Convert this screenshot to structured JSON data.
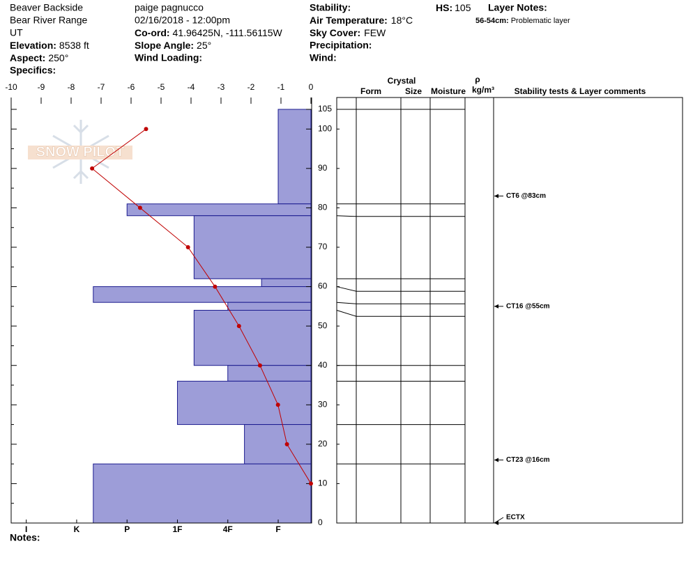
{
  "header": {
    "location": "Beaver Backside",
    "range": "Bear River Range",
    "state": "UT",
    "elevation": {
      "label": "Elevation:",
      "value": "8538 ft"
    },
    "aspect": {
      "label": "Aspect:",
      "value": "250°"
    },
    "specifics": "Specifics:",
    "observer": "paige pagnucco",
    "datetime": "02/16/2018 - 12:00pm",
    "coord": {
      "label": "Co-ord:",
      "value": "41.96425N, -111.56115W"
    },
    "slope": {
      "label": "Slope Angle:",
      "value": "25°"
    },
    "wind_loading": "Wind Loading:",
    "stability": "Stability:",
    "air_temp": {
      "label": "Air Temperature:",
      "value": "18°C"
    },
    "sky": {
      "label": "Sky Cover:",
      "value": "FEW"
    },
    "precip": "Precipitation:",
    "wind": "Wind:",
    "hs": {
      "label": "HS:",
      "value": "105"
    },
    "layer_notes": {
      "label": "Layer Notes:",
      "items": [
        {
          "range": "56-54cm:",
          "note": "Problematic layer"
        }
      ]
    }
  },
  "notes": "Notes:",
  "watermark": "SNOW PILOT",
  "chart_data": {
    "type": "snow-profile",
    "ylim": [
      0,
      105
    ],
    "yticks": [
      0,
      10,
      20,
      30,
      40,
      50,
      60,
      70,
      80,
      90,
      100,
      105
    ],
    "y_minor_ticks": [
      5,
      15,
      25,
      35,
      45,
      55,
      65,
      75,
      85,
      95
    ],
    "xlim": [
      -10,
      0
    ],
    "xticks": [
      -10,
      -9,
      -8,
      -7,
      -6,
      -5,
      -4,
      -3,
      -2,
      -1,
      0
    ],
    "hardness_lim": [
      0.35,
      6.3
    ],
    "hardness_ticks": [
      {
        "value": 6,
        "label": "I"
      },
      {
        "value": 5,
        "label": "K"
      },
      {
        "value": 4,
        "label": "P"
      },
      {
        "value": 3,
        "label": "1F"
      },
      {
        "value": 2,
        "label": "4F"
      },
      {
        "value": 1,
        "label": "F"
      }
    ],
    "layers": {
      "color": "#9d9dd8",
      "edge_color": "#1c1c8f",
      "top": [
        105,
        81,
        78,
        62,
        60,
        56,
        54,
        40,
        36,
        25,
        15
      ],
      "bottom": [
        81,
        78,
        62,
        60,
        56,
        54,
        40,
        36,
        25,
        15,
        0
      ],
      "hardness": [
        1,
        4,
        2.67,
        1.33,
        4.67,
        2,
        2.67,
        2,
        3,
        1.67,
        4.67
      ]
    },
    "temperature": {
      "color": "#c00000",
      "depth": [
        100,
        90,
        80,
        70,
        60,
        50,
        40,
        30,
        20,
        10
      ],
      "values": [
        -5.5,
        -7.3,
        -5.7,
        -4.1,
        -3.2,
        -2.4,
        -1.7,
        -1.1,
        -0.8,
        0
      ]
    },
    "table_headers": {
      "crystal": "Crystal",
      "form": "Form",
      "size": "Size",
      "moisture": "Moisture",
      "rho": "ρ",
      "density_unit": "kg/m³",
      "comments": "Stability tests & Layer comments"
    },
    "stability_tests": {
      "depth": [
        83,
        55,
        16,
        0
      ],
      "labels": [
        "CT6 @83cm",
        "CT16 @55cm",
        "CT23 @16cm",
        "ECTX"
      ]
    }
  }
}
